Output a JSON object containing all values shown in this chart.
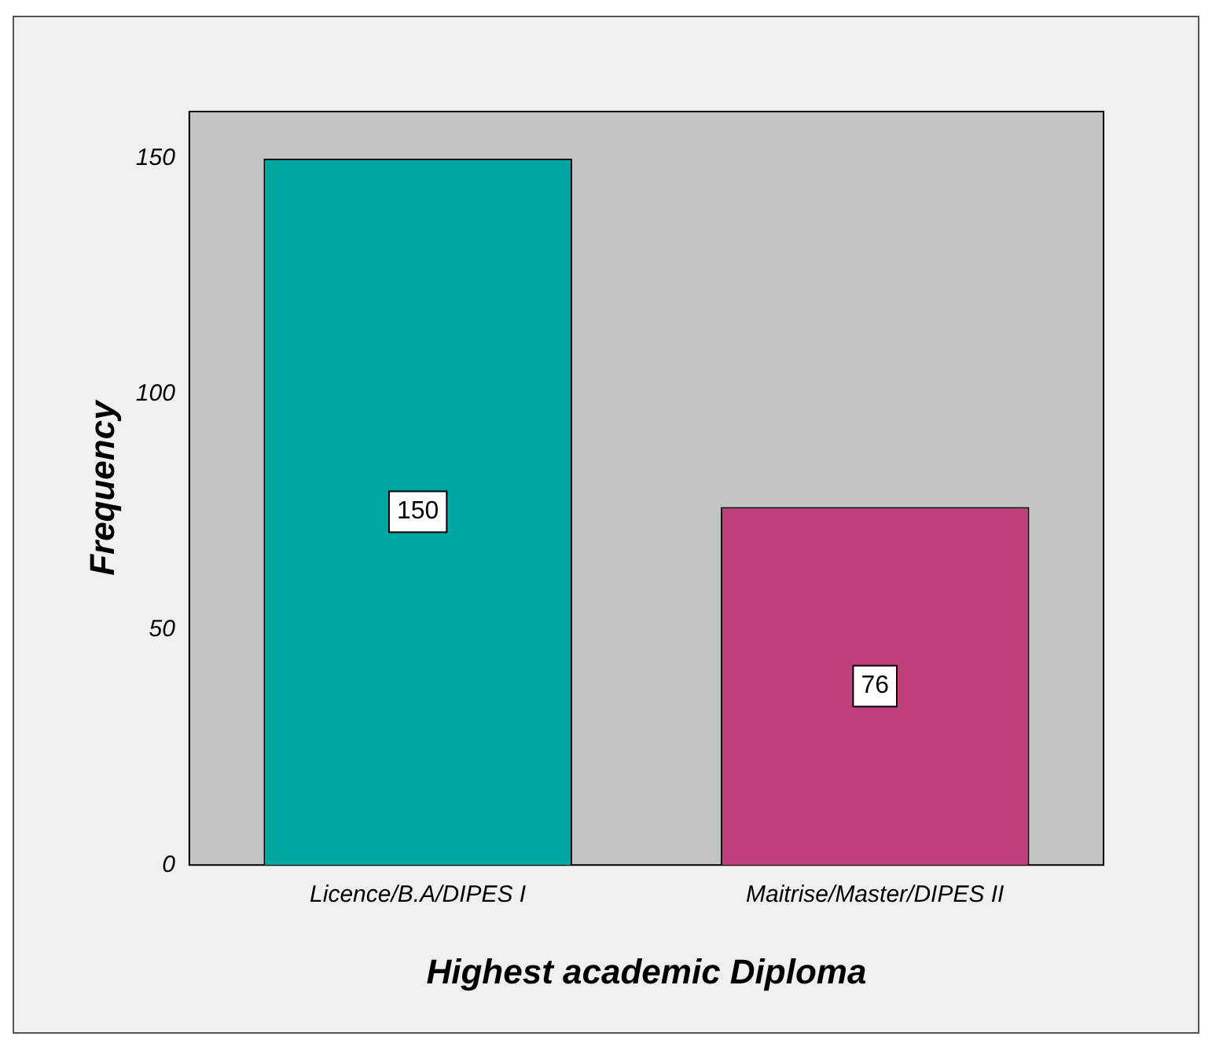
{
  "chart_data": {
    "type": "bar",
    "xlabel": "Highest academic Diploma",
    "ylabel": "Frequency",
    "categories": [
      "Licence/B.A/DIPES I",
      "Maitrise/Master/DIPES II"
    ],
    "values": [
      150,
      76
    ],
    "colors": [
      "#00a6a0",
      "#c0407c"
    ],
    "ylim": [
      0,
      160
    ],
    "yticks": [
      0,
      50,
      100,
      150
    ],
    "grid": false,
    "legend": false,
    "data_labels": true
  }
}
